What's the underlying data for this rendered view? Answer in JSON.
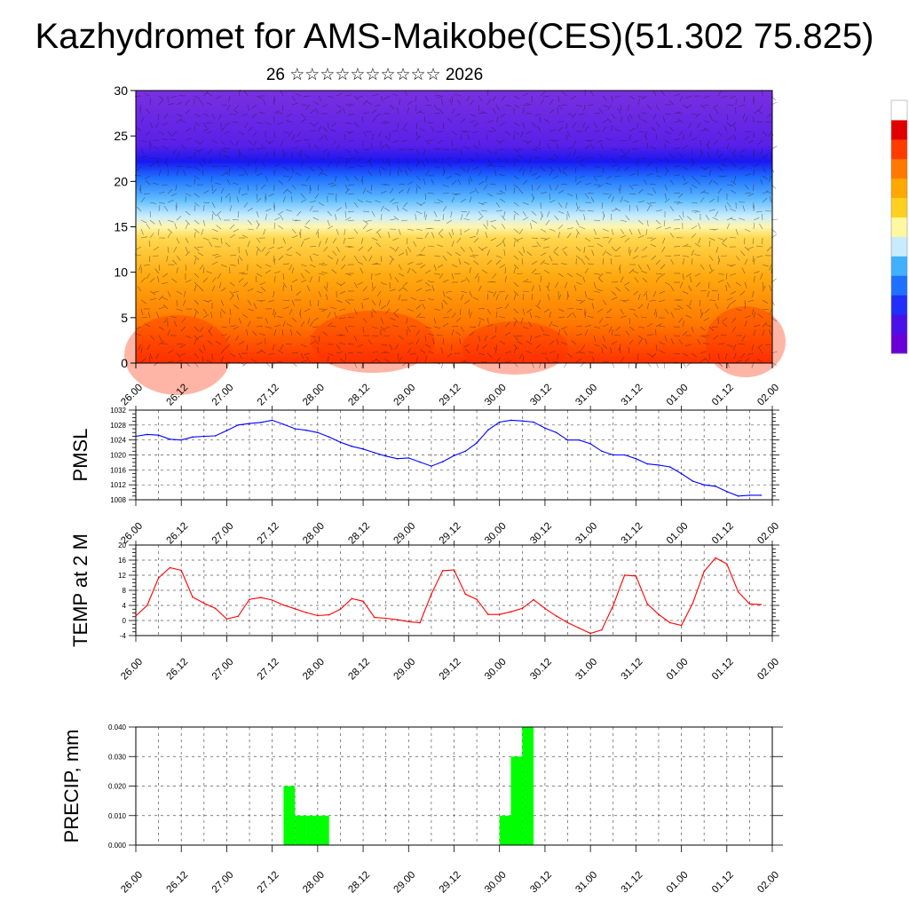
{
  "title": "Kazhydromet for AMS-Maikobe(CES)(51.302 75.825)",
  "subtitle": "26 ☆☆☆☆☆☆☆☆☆☆ 2026",
  "time_labels": [
    "26.00",
    "26.12",
    "27.00",
    "27.12",
    "28.00",
    "28.12",
    "29.00",
    "29.12",
    "30.00",
    "30.12",
    "31.00",
    "31.12",
    "01.00",
    "01.12",
    "02.00"
  ],
  "colors": {
    "pmsl_line": "#0000ff",
    "temp_line": "#ff0000",
    "precip_bar": "#00ff00",
    "grid": "#555555"
  },
  "chart_data": [
    {
      "type": "heatmap",
      "name": "cross-section",
      "title": "",
      "ylabel": "",
      "ylim": [
        0,
        30
      ],
      "yticks": [
        0,
        5,
        10,
        15,
        20,
        25,
        30
      ],
      "colorbar": [
        "#6a00d8",
        "#4a10e8",
        "#2030f8",
        "#2070ff",
        "#40b0ff",
        "#c8ecff",
        "#fff8a0",
        "#ffd020",
        "#ffa800",
        "#ff7800",
        "#ff3c00",
        "#e00000",
        "#ffffff"
      ]
    },
    {
      "type": "line",
      "name": "PMSL",
      "ylabel": "PMSL",
      "ylim": [
        1008,
        1032
      ],
      "yticks": [
        1008,
        1012,
        1016,
        1020,
        1024,
        1028,
        1032
      ],
      "x_range": [
        0,
        168
      ],
      "x": [
        0,
        3,
        6,
        9,
        12,
        15,
        18,
        21,
        24,
        27,
        30,
        33,
        36,
        39,
        42,
        45,
        48,
        51,
        54,
        57,
        60,
        63,
        66,
        69,
        72,
        75,
        78,
        81,
        84,
        87,
        90,
        93,
        96,
        99,
        102,
        105,
        108,
        111,
        114,
        117,
        120,
        123,
        126,
        129,
        132,
        135,
        138,
        141,
        144,
        147,
        150,
        153,
        156,
        159,
        162,
        165
      ],
      "values": [
        1025,
        1025.5,
        1025.3,
        1024.2,
        1024,
        1024.8,
        1025,
        1025.1,
        1026.5,
        1028,
        1028.4,
        1028.7,
        1029.3,
        1028.2,
        1027,
        1026.6,
        1026,
        1024.8,
        1023.4,
        1022.3,
        1021.6,
        1020.6,
        1019.7,
        1019,
        1019.2,
        1018.1,
        1017,
        1018.2,
        1019.8,
        1021,
        1023.2,
        1026.7,
        1028.8,
        1029.3,
        1029.1,
        1028.8,
        1027.2,
        1026,
        1024,
        1024,
        1023,
        1021,
        1020,
        1020,
        1019,
        1017.6,
        1017.3,
        1016.8,
        1015,
        1013,
        1012,
        1011.6,
        1010.2,
        1009,
        1009.2,
        1009.2
      ]
    },
    {
      "type": "line",
      "name": "TEMP",
      "ylabel": "TEMP at 2 M",
      "ylim": [
        -4,
        20
      ],
      "yticks": [
        -4,
        0,
        4,
        8,
        12,
        16,
        20
      ],
      "x_range": [
        0,
        168
      ],
      "x": [
        0,
        3,
        6,
        9,
        12,
        15,
        18,
        21,
        24,
        27,
        30,
        33,
        36,
        39,
        42,
        45,
        48,
        51,
        54,
        57,
        60,
        63,
        66,
        69,
        72,
        75,
        78,
        81,
        84,
        87,
        90,
        93,
        96,
        99,
        102,
        105,
        108,
        111,
        114,
        117,
        120,
        123,
        126,
        129,
        132,
        135,
        138,
        141,
        144,
        147,
        150,
        153,
        156,
        159,
        162,
        165
      ],
      "values": [
        1.2,
        4,
        11.3,
        14,
        13.3,
        6.2,
        4.6,
        3.2,
        0.4,
        1.1,
        5.6,
        6.1,
        5.4,
        4.1,
        3.1,
        2.1,
        1.3,
        1.5,
        3,
        5.8,
        5.1,
        0.8,
        0.6,
        0.2,
        -0.3,
        -0.6,
        7,
        13.2,
        13.4,
        7,
        5.6,
        1.6,
        1.6,
        2.3,
        3.2,
        5.5,
        3.2,
        1.2,
        -0.6,
        -2,
        -3.4,
        -2.5,
        4,
        12,
        11.8,
        4.4,
        1.6,
        -0.6,
        -1.3,
        4.6,
        13,
        16.6,
        15,
        7.6,
        4.4,
        4.2
      ]
    },
    {
      "type": "bar",
      "name": "PRECIP",
      "ylabel": "PRECIP, mm",
      "ylim": [
        0,
        0.04
      ],
      "ytick_labels": [
        "0.000",
        "0.010",
        "0.020",
        "0.030",
        "0.040"
      ],
      "x_range": [
        0,
        168
      ],
      "bar_width_hours": 3,
      "x": [
        39,
        42,
        45,
        48,
        96,
        99,
        102
      ],
      "values": [
        0.02,
        0.01,
        0.01,
        0.01,
        0.01,
        0.03,
        0.04
      ]
    }
  ]
}
